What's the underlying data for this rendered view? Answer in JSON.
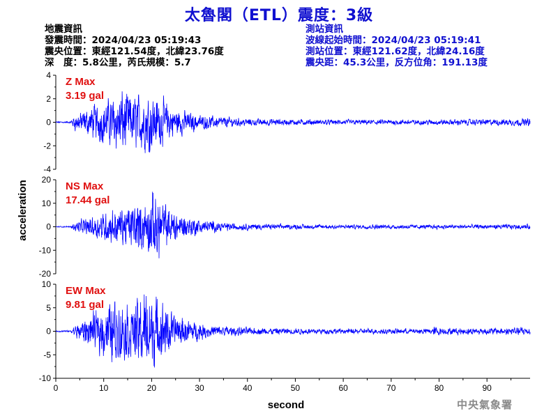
{
  "title": "太魯閣（ETL）震度：3級",
  "event_info": {
    "heading": "地震資訊",
    "origin_time": "發震時間：2024/04/23 05:19:43",
    "epicenter": "震央位置：東經121.54度，北緯23.76度",
    "depth_magnitude": "深　度：5.8公里，芮氏規模：5.7"
  },
  "station_info": {
    "heading": "測站資訊",
    "wave_start": "波線起始時間：2024/04/23 05:19:41",
    "location": "測站位置：東經121.62度，北緯24.16度",
    "distance": "震央距：45.3公里，反方位角：191.13度"
  },
  "agency": "中央氣象署",
  "colors": {
    "title": "#1010d0",
    "trace": "#0000ff",
    "max_label": "#e01010",
    "station_info": "#1010d0",
    "agency": "#8a8a8a"
  },
  "chart_data": [
    {
      "type": "line",
      "component": "Z",
      "max_label": "Z Max",
      "max_value": "3.19 gal",
      "peak": 3.19,
      "ylim": [
        -4,
        4
      ],
      "yticks": [
        "4",
        "2",
        "0",
        "-2",
        "-4"
      ],
      "xlim": [
        0,
        99
      ],
      "envelope": [
        [
          0,
          0.08
        ],
        [
          3,
          0.08
        ],
        [
          4,
          0.8
        ],
        [
          6,
          1.2
        ],
        [
          9,
          1.8
        ],
        [
          12,
          2.4
        ],
        [
          13.8,
          3.19
        ],
        [
          16,
          2.5
        ],
        [
          18,
          2.6
        ],
        [
          19.5,
          2.9
        ],
        [
          22,
          2.2
        ],
        [
          25,
          1.4
        ],
        [
          28,
          0.9
        ],
        [
          32,
          0.6
        ],
        [
          40,
          0.35
        ],
        [
          55,
          0.25
        ],
        [
          75,
          0.25
        ],
        [
          90,
          0.3
        ],
        [
          99,
          0.35
        ]
      ]
    },
    {
      "type": "line",
      "component": "NS",
      "max_label": "NS Max",
      "max_value": "17.44 gal",
      "peak": 17.44,
      "ylim": [
        -20,
        20
      ],
      "yticks": [
        "20",
        "10",
        "0",
        "-10",
        "-20"
      ],
      "xlim": [
        0,
        99
      ],
      "envelope": [
        [
          0,
          0.3
        ],
        [
          3,
          0.3
        ],
        [
          4,
          2
        ],
        [
          6,
          4
        ],
        [
          9,
          6
        ],
        [
          11,
          8
        ],
        [
          14,
          9
        ],
        [
          17,
          12
        ],
        [
          19,
          13
        ],
        [
          20.8,
          17.44
        ],
        [
          23,
          10
        ],
        [
          26,
          6
        ],
        [
          30,
          3.5
        ],
        [
          35,
          2
        ],
        [
          45,
          1.2
        ],
        [
          60,
          1
        ],
        [
          80,
          1
        ],
        [
          99,
          1.2
        ]
      ]
    },
    {
      "type": "line",
      "component": "EW",
      "max_label": "EW Max",
      "max_value": "9.81 gal",
      "peak": 9.81,
      "ylim": [
        -10,
        10
      ],
      "yticks": [
        "10",
        "5",
        "0",
        "-5",
        "-10"
      ],
      "xlim": [
        0,
        99
      ],
      "envelope": [
        [
          0,
          0.2
        ],
        [
          3,
          0.2
        ],
        [
          4,
          1.5
        ],
        [
          6,
          3
        ],
        [
          9,
          5
        ],
        [
          11,
          7
        ],
        [
          13,
          7.5
        ],
        [
          16,
          6.5
        ],
        [
          18,
          8.5
        ],
        [
          19.3,
          9.81
        ],
        [
          22,
          7
        ],
        [
          25,
          4
        ],
        [
          28,
          2.5
        ],
        [
          32,
          1.5
        ],
        [
          40,
          0.9
        ],
        [
          60,
          0.6
        ],
        [
          78,
          0.7
        ],
        [
          79,
          1.2
        ],
        [
          81,
          0.8
        ],
        [
          90,
          0.8
        ],
        [
          99,
          1.0
        ]
      ]
    }
  ],
  "x_axis": {
    "ticks": [
      "0",
      "10",
      "20",
      "30",
      "40",
      "50",
      "60",
      "70",
      "80",
      "90"
    ],
    "label": "second"
  },
  "y_axis_label": "acceleration"
}
